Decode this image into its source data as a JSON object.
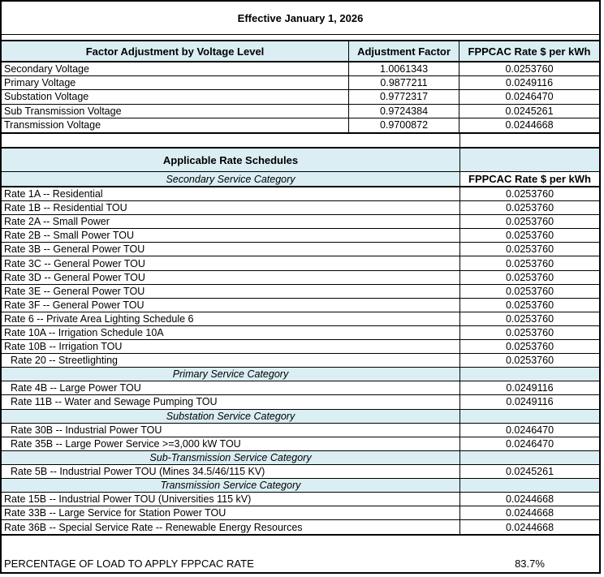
{
  "title": "Effective January 1, 2026",
  "colors": {
    "header_bg": "#DAEEF3",
    "border": "#000000"
  },
  "voltage_table": {
    "col_headers": [
      "Factor Adjustment by Voltage Level",
      "Adjustment Factor",
      "FPPCAC Rate $ per kWh"
    ],
    "rows": [
      {
        "label": "Secondary Voltage",
        "factor": "1.0061343",
        "rate": "0.0253760"
      },
      {
        "label": "Primary Voltage",
        "factor": "0.9877211",
        "rate": "0.0249116"
      },
      {
        "label": "Substation Voltage",
        "factor": "0.9772317",
        "rate": "0.0246470"
      },
      {
        "label": "Sub Transmission Voltage",
        "factor": "0.9724384",
        "rate": "0.0245261"
      },
      {
        "label": "Transmission Voltage",
        "factor": "0.9700872",
        "rate": "0.0244668"
      }
    ]
  },
  "schedule_table": {
    "header": "Applicable Rate Schedules",
    "subheader_category": "Secondary Service Category",
    "rate_col_header": "FPPCAC Rate $ per kWh",
    "rows": [
      {
        "type": "rate",
        "label": "Rate 1A -- Residential",
        "rate": "0.0253760"
      },
      {
        "type": "rate",
        "label": "Rate 1B -- Residential TOU",
        "rate": "0.0253760"
      },
      {
        "type": "rate",
        "label": "Rate 2A -- Small Power",
        "rate": "0.0253760"
      },
      {
        "type": "rate",
        "label": "Rate 2B -- Small Power TOU",
        "rate": "0.0253760"
      },
      {
        "type": "rate",
        "label": "Rate 3B -- General Power TOU",
        "rate": "0.0253760"
      },
      {
        "type": "rate",
        "label": "Rate 3C -- General Power TOU",
        "rate": "0.0253760"
      },
      {
        "type": "rate",
        "label": "Rate 3D -- General Power TOU",
        "rate": "0.0253760"
      },
      {
        "type": "rate",
        "label": "Rate 3E -- General Power TOU",
        "rate": "0.0253760"
      },
      {
        "type": "rate",
        "label": "Rate 3F -- General Power TOU",
        "rate": "0.0253760"
      },
      {
        "type": "rate",
        "label": "Rate 6 -- Private Area Lighting Schedule 6",
        "rate": "0.0253760"
      },
      {
        "type": "rate",
        "label": "Rate 10A -- Irrigation Schedule 10A",
        "rate": "0.0253760"
      },
      {
        "type": "rate",
        "label": "Rate 10B -- Irrigation TOU",
        "rate": "0.0253760"
      },
      {
        "type": "rate",
        "label": "Rate 20 -- Streetlighting",
        "rate": "0.0253760",
        "indent": true
      },
      {
        "type": "category",
        "label": "Primary Service Category"
      },
      {
        "type": "rate",
        "label": "Rate 4B -- Large Power TOU",
        "rate": "0.0249116",
        "indent": true
      },
      {
        "type": "rate",
        "label": "Rate 11B -- Water and Sewage Pumping TOU",
        "rate": "0.0249116",
        "indent": true
      },
      {
        "type": "category",
        "label": "Substation Service Category"
      },
      {
        "type": "rate",
        "label": "Rate 30B -- Industrial Power TOU",
        "rate": "0.0246470",
        "indent": true
      },
      {
        "type": "rate",
        "label": "Rate 35B -- Large Power Service >=3,000 kW TOU",
        "rate": "0.0246470",
        "indent": true
      },
      {
        "type": "category",
        "label": "Sub-Transmission Service Category"
      },
      {
        "type": "rate",
        "label": "Rate 5B -- Industrial Power TOU (Mines 34.5/46/115 KV)",
        "rate": "0.0245261",
        "indent": true
      },
      {
        "type": "category",
        "label": "Transmission Service Category"
      },
      {
        "type": "rate",
        "label": "Rate 15B -- Industrial Power TOU (Universities 115 kV)",
        "rate": "0.0244668"
      },
      {
        "type": "rate",
        "label": "Rate 33B -- Large Service for Station Power TOU",
        "rate": "0.0244668"
      },
      {
        "type": "rate",
        "label": "Rate 36B -- Special Service Rate -- Renewable Energy Resources",
        "rate": "0.0244668"
      }
    ]
  },
  "footer": {
    "label": "PERCENTAGE OF LOAD TO APPLY FPPCAC RATE",
    "value": "83.7%"
  }
}
